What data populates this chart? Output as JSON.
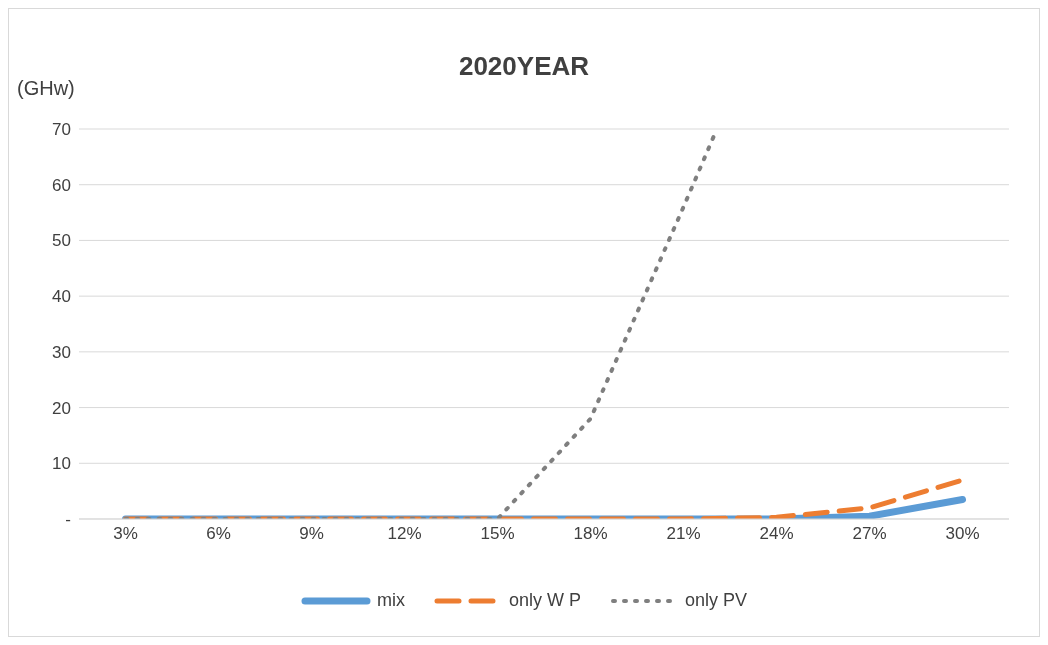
{
  "chart_data": {
    "type": "line",
    "title": "2020YEAR",
    "ylabel": "(GHw)",
    "x": [
      3,
      6,
      9,
      12,
      15,
      18,
      21,
      24,
      27,
      30
    ],
    "series": [
      {
        "name": "mix",
        "color": "#5b9bd5",
        "line_style": "solid",
        "values": [
          0,
          0,
          0,
          0,
          0,
          0,
          0,
          0,
          0.5,
          3.5
        ]
      },
      {
        "name": "only W P",
        "color": "#ed7d31",
        "line_style": "dashed",
        "values": [
          0,
          0,
          0,
          0,
          0,
          0,
          0,
          0.3,
          2,
          7
        ]
      },
      {
        "name": "only PV",
        "color": "#7f7f7f",
        "line_style": "dotted",
        "x": [
          3,
          6,
          9,
          12,
          15,
          18,
          21,
          22
        ],
        "values": [
          0,
          0,
          0,
          0,
          0,
          18,
          56,
          69
        ]
      }
    ],
    "xlim": [
      1.5,
      31.5
    ],
    "xticks": [
      {
        "value": 3,
        "label": "3%"
      },
      {
        "value": 6,
        "label": "6%"
      },
      {
        "value": 9,
        "label": "9%"
      },
      {
        "value": 12,
        "label": "12%"
      },
      {
        "value": 15,
        "label": "15%"
      },
      {
        "value": 18,
        "label": "18%"
      },
      {
        "value": 21,
        "label": "21%"
      },
      {
        "value": 24,
        "label": "24%"
      },
      {
        "value": 27,
        "label": "27%"
      },
      {
        "value": 30,
        "label": "30%"
      }
    ],
    "ylim": [
      0,
      70
    ],
    "yticks": [
      {
        "value": 0,
        "label": "-"
      },
      10,
      20,
      30,
      40,
      50,
      60,
      70
    ],
    "grid": "y",
    "legend": "bottom",
    "marker": "none"
  }
}
